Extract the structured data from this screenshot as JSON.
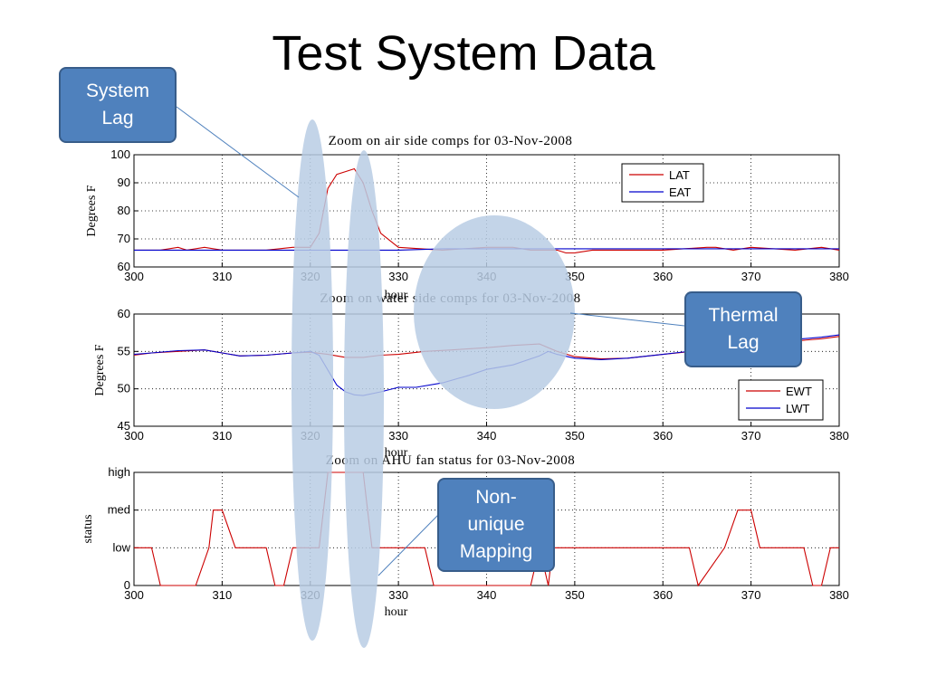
{
  "slide_title": "Test System Data",
  "callouts": {
    "system_lag": "System\nLag",
    "thermal_lag": "Thermal\nLag",
    "non_unique": "Non-\nunique\nMapping"
  },
  "colors": {
    "red": "#cc0000",
    "blue": "#0000cc",
    "highlight": "#b8cce4",
    "callout": "#4f81bd"
  },
  "chart_data": [
    {
      "type": "line",
      "title": "Zoom on air side comps for 03-Nov-2008",
      "xlabel": "hour",
      "ylabel": "Degrees F",
      "xlim": [
        300,
        380
      ],
      "ylim": [
        60,
        100
      ],
      "xticks": [
        300,
        310,
        320,
        330,
        340,
        350,
        360,
        370,
        380
      ],
      "yticks": [
        60,
        70,
        80,
        90,
        100
      ],
      "grid": true,
      "legend_position": "top-right",
      "series": [
        {
          "name": "LAT",
          "color": "#cc0000",
          "x": [
            300,
            303,
            305,
            306,
            308,
            310,
            315,
            318,
            320,
            321,
            322,
            323,
            324,
            325,
            326,
            327,
            328,
            330,
            335,
            340,
            343,
            345,
            348,
            349,
            350,
            352,
            355,
            360,
            365,
            366,
            368,
            370,
            375,
            378,
            380
          ],
          "y": [
            66,
            66,
            67,
            66,
            67,
            66,
            66,
            67,
            67,
            72,
            88,
            93,
            94,
            95,
            90,
            80,
            72,
            67,
            66,
            67,
            67,
            66,
            66,
            65,
            65,
            66,
            66,
            66,
            67,
            67,
            66,
            67,
            66,
            67,
            66
          ]
        },
        {
          "name": "EAT",
          "color": "#0000cc",
          "x": [
            300,
            310,
            320,
            325,
            330,
            335,
            340,
            345,
            350,
            355,
            360,
            370,
            380
          ],
          "y": [
            66,
            66,
            66,
            66,
            66,
            66.5,
            66.5,
            66.5,
            66.5,
            66.5,
            66.5,
            66.5,
            66.5
          ]
        }
      ]
    },
    {
      "type": "line",
      "title": "Zoom on water side comps for 03-Nov-2008",
      "xlabel": "hour",
      "ylabel": "Degrees F",
      "xlim": [
        300,
        380
      ],
      "ylim": [
        45,
        60
      ],
      "xticks": [
        300,
        310,
        320,
        330,
        340,
        350,
        360,
        370,
        380
      ],
      "yticks": [
        45,
        50,
        55,
        60
      ],
      "grid": true,
      "legend_position": "bottom-right",
      "series": [
        {
          "name": "EWT",
          "color": "#cc0000",
          "x": [
            300,
            302,
            305,
            308,
            310,
            312,
            315,
            318,
            320,
            322,
            324,
            326,
            328,
            330,
            333,
            336,
            340,
            343,
            346,
            348,
            350,
            353,
            356,
            360,
            365,
            370,
            375,
            378,
            380
          ],
          "y": [
            54.5,
            54.8,
            55,
            55.2,
            54.8,
            54.4,
            54.5,
            54.8,
            54.9,
            54.6,
            54.2,
            54.2,
            54.5,
            54.6,
            55,
            55.2,
            55.5,
            55.8,
            56,
            55,
            54.3,
            54,
            54.1,
            54.6,
            55.2,
            55.8,
            56.4,
            56.7,
            57
          ]
        },
        {
          "name": "LWT",
          "color": "#0000cc",
          "x": [
            300,
            302,
            305,
            308,
            310,
            312,
            315,
            318,
            320,
            321,
            322,
            323,
            324,
            325,
            326,
            328,
            330,
            332,
            335,
            338,
            340,
            343,
            346,
            347,
            348,
            350,
            353,
            356,
            360,
            365,
            370,
            375,
            378,
            380
          ],
          "y": [
            54.6,
            54.8,
            55.1,
            55.2,
            54.8,
            54.4,
            54.5,
            54.8,
            55,
            54.5,
            52.5,
            50.5,
            49.6,
            49.2,
            49.1,
            49.6,
            50.2,
            50.2,
            50.8,
            51.8,
            52.6,
            53.2,
            54.4,
            55,
            54.6,
            54.1,
            53.9,
            54.1,
            54.6,
            55.3,
            55.9,
            56.6,
            56.9,
            57.2
          ]
        }
      ]
    },
    {
      "type": "line",
      "title": "Zoom on AHU fan status for 03-Nov-2008",
      "xlabel": "hour",
      "ylabel": "status",
      "xlim": [
        300,
        380
      ],
      "ylim": [
        0,
        3
      ],
      "xticks": [
        300,
        310,
        320,
        330,
        340,
        350,
        360,
        370,
        380
      ],
      "yticks": [
        0,
        1,
        2,
        3
      ],
      "ytick_labels": [
        "0",
        "low",
        "med",
        "high"
      ],
      "grid": true,
      "series": [
        {
          "name": "",
          "color": "#cc0000",
          "x": [
            300,
            302,
            303,
            307,
            308.5,
            309,
            310,
            311.5,
            315,
            316,
            317,
            318,
            319,
            320,
            321,
            322,
            322.5,
            326,
            327,
            330,
            332,
            333,
            334,
            335,
            345,
            346,
            347,
            347.5,
            350,
            363,
            364,
            367,
            368.5,
            370,
            371,
            376,
            377,
            378,
            379,
            380
          ],
          "y": [
            1,
            1,
            0,
            0,
            1,
            2,
            2,
            1,
            1,
            0,
            0,
            1,
            1,
            1,
            1,
            3,
            3,
            3,
            1,
            1,
            1,
            1,
            0,
            0,
            0,
            1,
            0,
            1,
            1,
            1,
            0,
            1,
            2,
            2,
            1,
            1,
            0,
            0,
            1,
            1
          ]
        }
      ]
    }
  ]
}
